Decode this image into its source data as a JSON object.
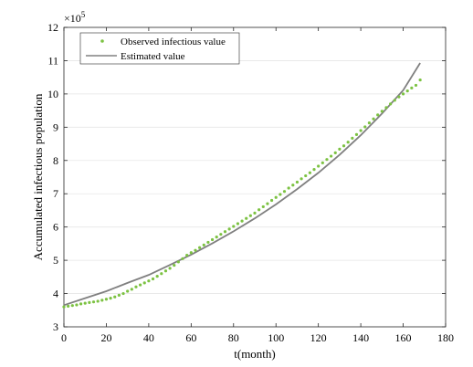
{
  "chart_data": {
    "type": "scatter",
    "title": "",
    "xlabel": "t(month)",
    "ylabel": "Accumulated infectious population",
    "xlim": [
      0,
      180
    ],
    "ylim": [
      3,
      12
    ],
    "x_ticks": [
      0,
      20,
      40,
      60,
      80,
      100,
      120,
      140,
      160,
      180
    ],
    "y_ticks": [
      3,
      4,
      5,
      6,
      7,
      8,
      9,
      10,
      11,
      12
    ],
    "y_multiplier_label": "×10",
    "y_multiplier_exp": "5",
    "grid": "horizontal",
    "legend_position": "top-left",
    "series": [
      {
        "name": "Observed infectious value",
        "kind": "markers",
        "color": "#7cc242",
        "x": [
          0,
          2,
          4,
          6,
          8,
          10,
          12,
          14,
          16,
          18,
          20,
          22,
          24,
          26,
          28,
          30,
          32,
          34,
          36,
          38,
          40,
          42,
          44,
          46,
          48,
          50,
          52,
          54,
          56,
          58,
          60,
          62,
          64,
          66,
          68,
          70,
          72,
          74,
          76,
          78,
          80,
          82,
          84,
          86,
          88,
          90,
          92,
          94,
          96,
          98,
          100,
          102,
          104,
          106,
          108,
          110,
          112,
          114,
          116,
          118,
          120,
          122,
          124,
          126,
          128,
          130,
          132,
          134,
          136,
          138,
          140,
          142,
          144,
          146,
          148,
          150,
          152,
          154,
          156,
          158,
          160,
          162,
          164,
          166,
          168
        ],
        "y": [
          3.6,
          3.62,
          3.64,
          3.66,
          3.69,
          3.71,
          3.73,
          3.75,
          3.77,
          3.8,
          3.83,
          3.86,
          3.9,
          3.95,
          4.0,
          4.07,
          4.13,
          4.2,
          4.26,
          4.32,
          4.38,
          4.44,
          4.52,
          4.6,
          4.68,
          4.76,
          4.85,
          4.95,
          5.05,
          5.15,
          5.23,
          5.3,
          5.38,
          5.46,
          5.54,
          5.62,
          5.7,
          5.78,
          5.86,
          5.94,
          6.02,
          6.1,
          6.18,
          6.26,
          6.34,
          6.42,
          6.52,
          6.61,
          6.7,
          6.8,
          6.89,
          6.98,
          7.07,
          7.17,
          7.26,
          7.35,
          7.45,
          7.54,
          7.63,
          7.73,
          7.83,
          7.93,
          8.03,
          8.13,
          8.23,
          8.34,
          8.44,
          8.55,
          8.67,
          8.78,
          8.9,
          9.01,
          9.13,
          9.25,
          9.37,
          9.48,
          9.59,
          9.7,
          9.81,
          9.91,
          10.0,
          10.09,
          10.18,
          10.26,
          10.42
        ]
      },
      {
        "name": "Estimated value",
        "kind": "line",
        "color": "#808080",
        "x": [
          0,
          10,
          20,
          30,
          40,
          50,
          60,
          70,
          80,
          90,
          100,
          110,
          120,
          130,
          140,
          150,
          160,
          168
        ],
        "y": [
          3.65,
          3.86,
          4.07,
          4.32,
          4.56,
          4.86,
          5.17,
          5.51,
          5.87,
          6.26,
          6.68,
          7.14,
          7.63,
          8.17,
          8.76,
          9.41,
          10.11,
          10.93
        ]
      }
    ]
  }
}
